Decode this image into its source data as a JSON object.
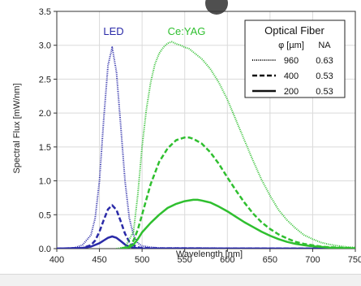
{
  "chart_data": {
    "type": "line",
    "xlabel": "Wavelength [nm]",
    "ylabel": "Spectral Flux [mW/nm]",
    "xlim": [
      400,
      750
    ],
    "ylim": [
      0,
      3.5
    ],
    "xticks": [
      "400",
      "450",
      "500",
      "550",
      "600",
      "650",
      "700",
      "750"
    ],
    "yticks": [
      "0.0",
      "0.5",
      "1.0",
      "1.5",
      "2.0",
      "2.5",
      "3.0",
      "3.5"
    ],
    "grid": true,
    "colors": {
      "led": "#2a2aa8",
      "ceyag": "#2fbf2f"
    },
    "series_labels": {
      "led": "LED",
      "ceyag": "Ce:YAG"
    },
    "legend": {
      "title": "Optical Fiber",
      "col_phi": "φ [µm]",
      "col_na": "NA",
      "placement": "top-right",
      "rows": [
        {
          "style": "dotted",
          "phi": "960",
          "na": "0.63"
        },
        {
          "style": "dashed",
          "phi": "400",
          "na": "0.53"
        },
        {
          "style": "solid",
          "phi": "200",
          "na": "0.53"
        }
      ]
    },
    "series": [
      {
        "group": "led",
        "style": "dotted",
        "x": [
          400,
          420,
          430,
          440,
          445,
          450,
          455,
          460,
          465,
          470,
          475,
          480,
          485,
          490,
          495,
          500,
          510,
          520,
          750
        ],
        "y": [
          0,
          0.01,
          0.05,
          0.2,
          0.45,
          1.0,
          1.9,
          2.7,
          2.97,
          2.6,
          1.8,
          1.0,
          0.45,
          0.2,
          0.08,
          0.04,
          0.02,
          0.01,
          0.0
        ]
      },
      {
        "group": "led",
        "style": "dashed",
        "x": [
          400,
          430,
          440,
          445,
          450,
          455,
          460,
          465,
          470,
          475,
          480,
          485,
          490,
          495,
          500,
          520,
          750
        ],
        "y": [
          0,
          0.01,
          0.05,
          0.12,
          0.25,
          0.42,
          0.58,
          0.64,
          0.57,
          0.4,
          0.22,
          0.1,
          0.05,
          0.02,
          0.01,
          0.005,
          0.0
        ]
      },
      {
        "group": "led",
        "style": "solid",
        "x": [
          400,
          430,
          440,
          450,
          455,
          460,
          465,
          470,
          475,
          480,
          485,
          490,
          495,
          500,
          520,
          750
        ],
        "y": [
          0,
          0.01,
          0.03,
          0.08,
          0.12,
          0.16,
          0.18,
          0.16,
          0.11,
          0.06,
          0.03,
          0.015,
          0.005,
          0.002,
          0.001,
          0.0
        ]
      },
      {
        "group": "ceyag",
        "style": "dotted",
        "x": [
          470,
          480,
          490,
          495,
          500,
          505,
          510,
          515,
          520,
          525,
          530,
          535,
          540,
          545,
          550,
          555,
          560,
          570,
          580,
          590,
          600,
          610,
          620,
          630,
          640,
          650,
          660,
          670,
          680,
          690,
          700,
          710,
          720,
          730,
          740,
          750
        ],
        "y": [
          0,
          0.02,
          0.25,
          0.8,
          1.5,
          2.05,
          2.45,
          2.72,
          2.88,
          2.97,
          3.03,
          3.05,
          3.02,
          3.0,
          2.97,
          2.95,
          2.9,
          2.8,
          2.65,
          2.45,
          2.2,
          1.9,
          1.6,
          1.3,
          1.02,
          0.78,
          0.57,
          0.42,
          0.3,
          0.2,
          0.14,
          0.09,
          0.06,
          0.04,
          0.025,
          0.015
        ]
      },
      {
        "group": "ceyag",
        "style": "dashed",
        "x": [
          475,
          485,
          490,
          495,
          500,
          510,
          520,
          530,
          540,
          550,
          555,
          560,
          570,
          580,
          590,
          600,
          610,
          620,
          630,
          640,
          650,
          660,
          670,
          680,
          690,
          700,
          710,
          720,
          730,
          740,
          750
        ],
        "y": [
          0,
          0.03,
          0.12,
          0.28,
          0.5,
          0.95,
          1.28,
          1.48,
          1.6,
          1.64,
          1.64,
          1.62,
          1.55,
          1.42,
          1.25,
          1.05,
          0.86,
          0.68,
          0.52,
          0.39,
          0.29,
          0.21,
          0.15,
          0.1,
          0.07,
          0.05,
          0.03,
          0.02,
          0.015,
          0.01,
          0.005
        ]
      },
      {
        "group": "ceyag",
        "style": "solid",
        "x": [
          475,
          485,
          490,
          495,
          500,
          510,
          520,
          530,
          540,
          550,
          560,
          565,
          570,
          580,
          590,
          600,
          610,
          620,
          630,
          640,
          650,
          660,
          670,
          680,
          690,
          700,
          710,
          720,
          730,
          740,
          750
        ],
        "y": [
          0,
          0.02,
          0.06,
          0.14,
          0.24,
          0.38,
          0.5,
          0.6,
          0.66,
          0.7,
          0.72,
          0.72,
          0.71,
          0.68,
          0.62,
          0.55,
          0.47,
          0.39,
          0.32,
          0.25,
          0.19,
          0.14,
          0.1,
          0.07,
          0.05,
          0.035,
          0.025,
          0.015,
          0.01,
          0.006,
          0.003
        ]
      }
    ]
  }
}
